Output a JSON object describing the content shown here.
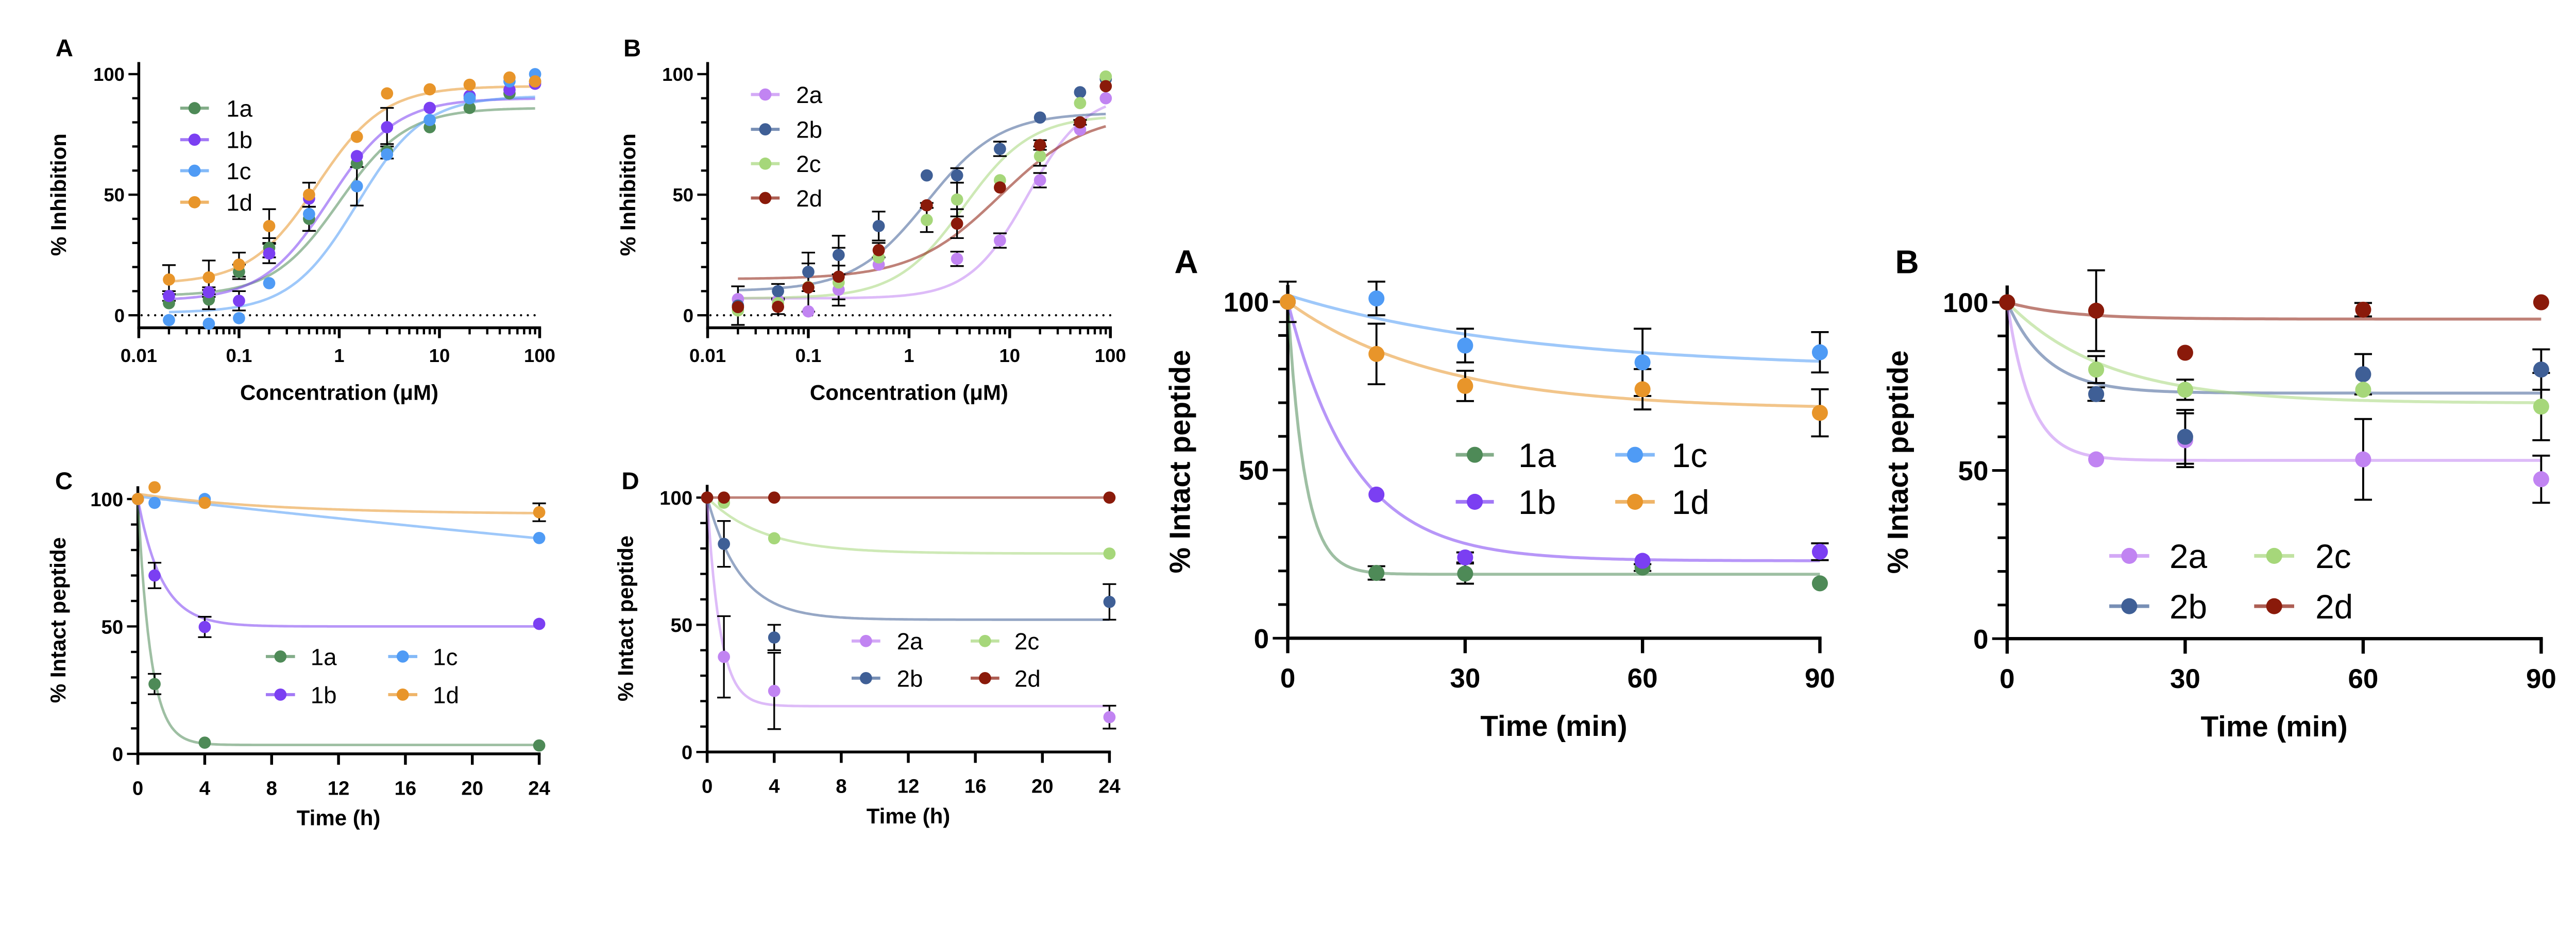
{
  "chart_data": [
    {
      "panel_label": "A",
      "type": "scatter",
      "xlabel": "Concentration (μM)",
      "ylabel": "% Inhibition",
      "xscale": "log",
      "xlim": [
        0.01,
        100
      ],
      "ylim": [
        -5,
        105
      ],
      "xticks": [
        "0.01",
        "0.1",
        "1",
        "10",
        "100"
      ],
      "yticks": [
        "0",
        "50",
        "100"
      ],
      "reference_line": {
        "y": 0,
        "style": "dotted"
      },
      "legend": "upper-left",
      "series": [
        {
          "name": "1a",
          "color": "#4e8a57",
          "x": [
            0.02,
            0.05,
            0.1,
            0.2,
            0.5,
            1.5,
            3,
            8,
            20,
            50,
            90
          ],
          "y": [
            5,
            6.5,
            18,
            28,
            40,
            63,
            68,
            78,
            86,
            92,
            97
          ],
          "err": [
            0,
            4,
            3,
            4,
            5,
            0,
            3,
            0,
            0,
            0,
            0
          ],
          "fit": {
            "model": "sigmoidal",
            "bottom": 8,
            "top": 86,
            "ec50": 1.0,
            "hill": 1.3
          }
        },
        {
          "name": "1b",
          "color": "#7b3ff2",
          "x": [
            0.02,
            0.05,
            0.1,
            0.2,
            0.5,
            1.5,
            3,
            8,
            20,
            50,
            90
          ],
          "y": [
            8,
            9.6,
            6,
            25.6,
            48.4,
            66,
            78,
            86,
            91,
            93.5,
            96
          ],
          "err": [
            2,
            2,
            4,
            4,
            0,
            0,
            8,
            0,
            0,
            0,
            0
          ],
          "fit": {
            "model": "sigmoidal",
            "bottom": 6,
            "top": 90,
            "ec50": 0.8,
            "hill": 1.3
          }
        },
        {
          "name": "1c",
          "color": "#4f9bf5",
          "x": [
            0.02,
            0.05,
            0.1,
            0.2,
            0.5,
            1.5,
            3,
            8,
            20,
            50,
            90
          ],
          "y": [
            -2,
            -3.5,
            -1.2,
            13.3,
            42,
            53.5,
            66.7,
            81,
            90,
            97,
            100
          ],
          "err": [
            0,
            0,
            0,
            0,
            0,
            8,
            0,
            0,
            0,
            0,
            0
          ],
          "fit": {
            "model": "sigmoidal",
            "bottom": 1,
            "top": 91,
            "ec50": 1.5,
            "hill": 1.3
          }
        },
        {
          "name": "1d",
          "color": "#e8952a",
          "x": [
            0.02,
            0.05,
            0.1,
            0.2,
            0.5,
            1.5,
            3,
            8,
            20,
            50,
            90
          ],
          "y": [
            14.8,
            15.7,
            21,
            37,
            50,
            74,
            92,
            93.7,
            95.6,
            98.6,
            97
          ],
          "err": [
            6,
            7,
            5,
            7,
            5,
            0,
            0,
            0,
            0,
            0,
            0
          ],
          "fit": {
            "model": "sigmoidal",
            "bottom": 13,
            "top": 95,
            "ec50": 0.6,
            "hill": 1.3
          }
        }
      ]
    },
    {
      "panel_label": "B",
      "type": "scatter",
      "xlabel": "Concentration (μM)",
      "ylabel": "% Inhibition",
      "xscale": "log",
      "xlim": [
        0.01,
        100
      ],
      "ylim": [
        -5,
        105
      ],
      "xticks": [
        "0.01",
        "0.1",
        "1",
        "10",
        "100"
      ],
      "yticks": [
        "0",
        "50",
        "100"
      ],
      "reference_line": {
        "y": 0,
        "style": "dotted"
      },
      "legend": "upper-left",
      "series": [
        {
          "name": "2a",
          "color": "#c184f2",
          "x": [
            0.02,
            0.05,
            0.1,
            0.2,
            0.5,
            3,
            8,
            20,
            50,
            90
          ],
          "y": [
            6.7,
            6.2,
            1.6,
            10.6,
            21,
            23.4,
            31,
            56,
            77,
            90
          ],
          "err": [
            0,
            0,
            0,
            0,
            0,
            3,
            3,
            3,
            0,
            0
          ],
          "fit": {
            "model": "sigmoidal",
            "bottom": 7,
            "top": 92,
            "ec50": 15,
            "hill": 1.5
          }
        },
        {
          "name": "2b",
          "color": "#3f5f96",
          "x": [
            0.02,
            0.05,
            0.1,
            0.2,
            0.5,
            1.5,
            3,
            8,
            20,
            50,
            90
          ],
          "y": [
            4,
            10,
            18,
            25,
            37,
            58,
            58,
            69,
            82,
            92.5,
            98
          ],
          "err": [
            8,
            3,
            8,
            8,
            6,
            0,
            3,
            3,
            0,
            0,
            0
          ],
          "fit": {
            "model": "sigmoidal",
            "bottom": 10,
            "top": 84,
            "ec50": 1.5,
            "hill": 1.2
          }
        },
        {
          "name": "2c",
          "color": "#a6d77a",
          "x": [
            0.02,
            0.05,
            0.1,
            0.2,
            0.5,
            1.5,
            3,
            8,
            20,
            50,
            90
          ],
          "y": [
            2,
            5,
            11.7,
            13.6,
            24,
            39.5,
            48,
            56,
            66,
            88,
            99
          ],
          "err": [
            0,
            0,
            0,
            7,
            0,
            5,
            7,
            0,
            4,
            0,
            0
          ],
          "fit": {
            "model": "sigmoidal",
            "bottom": 7,
            "top": 83,
            "ec50": 3.5,
            "hill": 1.3
          }
        },
        {
          "name": "2d",
          "color": "#8a1a0a",
          "x": [
            0.02,
            0.05,
            0.1,
            0.2,
            0.5,
            1.5,
            3,
            8,
            20,
            50,
            90
          ],
          "y": [
            3.4,
            3.5,
            11.5,
            16,
            27,
            45.6,
            38,
            53,
            70.6,
            80,
            95
          ],
          "err": [
            0,
            3,
            10,
            12,
            3,
            1,
            6,
            0,
            2,
            1,
            0
          ],
          "fit": {
            "model": "sigmoidal",
            "bottom": 15,
            "top": 84,
            "ec50": 8,
            "hill": 1.0
          }
        }
      ]
    },
    {
      "panel_label": "C",
      "type": "scatter",
      "xlabel": "Time (h)",
      "ylabel": "% Intact peptide",
      "xscale": "linear",
      "xlim": [
        0,
        24
      ],
      "ylim": [
        0,
        105
      ],
      "xticks": [
        "0",
        "4",
        "8",
        "12",
        "16",
        "20",
        "24"
      ],
      "yticks": [
        "0",
        "50",
        "100"
      ],
      "legend": "center-right, two columns",
      "series": [
        {
          "name": "1a",
          "color": "#4e8a57",
          "x": [
            0,
            1,
            4,
            24
          ],
          "y": [
            100,
            27.4,
            4.4,
            3.3
          ],
          "err": [
            0,
            4,
            0,
            0
          ],
          "fit": {
            "model": "one-phase decay",
            "y0": 100,
            "plateau": 3.5,
            "k": 1.3
          }
        },
        {
          "name": "1b",
          "color": "#7b3ff2",
          "x": [
            0,
            1,
            4,
            24
          ],
          "y": [
            100,
            70,
            49.8,
            51
          ],
          "err": [
            0,
            5,
            4,
            0
          ],
          "fit": {
            "model": "one-phase decay",
            "y0": 100,
            "plateau": 50,
            "k": 0.7
          }
        },
        {
          "name": "1c",
          "color": "#4f9bf5",
          "x": [
            0,
            1,
            4,
            24
          ],
          "y": [
            100,
            98.5,
            100,
            84.7
          ],
          "err": [
            0,
            0,
            0,
            0
          ],
          "fit": {
            "model": "one-phase decay",
            "y0": 101,
            "plateau": 0,
            "k": 0.0074
          }
        },
        {
          "name": "1d",
          "color": "#e8952a",
          "x": [
            0,
            1,
            4,
            24
          ],
          "y": [
            100,
            104.6,
            98.5,
            94.8
          ],
          "err": [
            0,
            0,
            0,
            3.5
          ],
          "fit": {
            "model": "one-phase decay",
            "y0": 102,
            "plateau": 94,
            "k": 0.12
          }
        }
      ]
    },
    {
      "panel_label": "D",
      "type": "scatter",
      "xlabel": "Time (h)",
      "ylabel": "% Intact peptide",
      "xscale": "linear",
      "xlim": [
        0,
        24
      ],
      "ylim": [
        0,
        105
      ],
      "xticks": [
        "0",
        "4",
        "8",
        "12",
        "16",
        "20",
        "24"
      ],
      "yticks": [
        "0",
        "50",
        "100"
      ],
      "legend": "center-right, two columns",
      "series": [
        {
          "name": "2a",
          "color": "#c184f2",
          "x": [
            0,
            1,
            4,
            24
          ],
          "y": [
            100,
            37.4,
            24,
            13.7
          ],
          "err": [
            0,
            16,
            15,
            4.5
          ],
          "fit": {
            "model": "one-phase decay",
            "y0": 100,
            "plateau": 18,
            "k": 1.3
          }
        },
        {
          "name": "2b",
          "color": "#3f5f96",
          "x": [
            0,
            1,
            4,
            24
          ],
          "y": [
            100,
            81.8,
            45,
            59
          ],
          "err": [
            0,
            9,
            5,
            7
          ],
          "fit": {
            "model": "one-phase decay",
            "y0": 100,
            "plateau": 52,
            "k": 0.5
          }
        },
        {
          "name": "2c",
          "color": "#a6d77a",
          "x": [
            0,
            1,
            4,
            24
          ],
          "y": [
            100,
            98,
            84,
            78
          ],
          "err": [
            0,
            0,
            0,
            0
          ],
          "fit": {
            "model": "one-phase decay",
            "y0": 100,
            "plateau": 78,
            "k": 0.3
          }
        },
        {
          "name": "2d",
          "color": "#8a1a0a",
          "x": [
            0,
            1,
            4,
            24
          ],
          "y": [
            100,
            100,
            100,
            100
          ],
          "err": [
            0,
            0,
            0,
            0
          ],
          "fit": {
            "model": "one-phase decay",
            "y0": 100,
            "plateau": 100,
            "k": 0.1
          }
        }
      ]
    },
    {
      "panel_label": "A",
      "type": "scatter",
      "xlabel": "Time (min)",
      "ylabel": "% Intact peptide",
      "xscale": "linear",
      "xlim": [
        0,
        90
      ],
      "ylim": [
        0,
        105
      ],
      "xticks": [
        "0",
        "30",
        "60",
        "90"
      ],
      "yticks": [
        "0",
        "50",
        "100"
      ],
      "legend": "center, two columns",
      "series": [
        {
          "name": "1a",
          "color": "#4e8a57",
          "x": [
            0,
            15,
            30,
            60,
            90
          ],
          "y": [
            100,
            19.4,
            19.2,
            21,
            16.3
          ],
          "err": [
            0,
            2,
            3,
            1,
            0
          ],
          "fit": {
            "model": "one-phase decay",
            "y0": 100,
            "plateau": 19,
            "k": 0.35
          }
        },
        {
          "name": "1b",
          "color": "#7b3ff2",
          "x": [
            0,
            15,
            30,
            60,
            90
          ],
          "y": [
            100,
            42.7,
            24,
            23,
            25.7
          ],
          "err": [
            0,
            0,
            1.5,
            0,
            2.5
          ],
          "fit": {
            "model": "one-phase decay",
            "y0": 100,
            "plateau": 23,
            "k": 0.09
          }
        },
        {
          "name": "1c",
          "color": "#4f9bf5",
          "x": [
            0,
            15,
            30,
            60,
            90
          ],
          "y": [
            100,
            101,
            87,
            82,
            85
          ],
          "err": [
            0,
            5,
            5,
            10,
            6
          ],
          "fit": {
            "model": "one-phase decay",
            "y0": 102,
            "plateau": 80,
            "k": 0.025
          }
        },
        {
          "name": "1d",
          "color": "#e8952a",
          "x": [
            0,
            15,
            30,
            60,
            90
          ],
          "y": [
            100,
            84.5,
            75,
            74,
            67
          ],
          "err": [
            6,
            9,
            4.5,
            6,
            7
          ],
          "fit": {
            "model": "one-phase decay",
            "y0": 100,
            "plateau": 68,
            "k": 0.04
          }
        }
      ]
    },
    {
      "panel_label": "B",
      "type": "scatter",
      "xlabel": "Time (min)",
      "ylabel": "% Intact peptide",
      "xscale": "linear",
      "xlim": [
        0,
        90
      ],
      "ylim": [
        0,
        105
      ],
      "xticks": [
        "0",
        "30",
        "60",
        "90"
      ],
      "yticks": [
        "0",
        "50",
        "100"
      ],
      "legend": "bottom-center, two columns",
      "series": [
        {
          "name": "2a",
          "color": "#c184f2",
          "x": [
            0,
            15,
            30,
            60,
            90
          ],
          "y": [
            100,
            53.3,
            59,
            53.3,
            47.4
          ],
          "err": [
            0,
            0,
            8,
            12,
            7
          ],
          "fit": {
            "model": "one-phase decay",
            "y0": 100,
            "plateau": 53,
            "k": 0.25
          }
        },
        {
          "name": "2b",
          "color": "#3f5f96",
          "x": [
            0,
            15,
            30,
            60,
            90
          ],
          "y": [
            100,
            72.7,
            60,
            78.6,
            80
          ],
          "err": [
            0,
            2,
            8,
            6,
            6
          ],
          "fit": {
            "model": "one-phase decay",
            "y0": 100,
            "plateau": 73,
            "k": 0.15
          }
        },
        {
          "name": "2c",
          "color": "#a6d77a",
          "x": [
            0,
            15,
            30,
            60,
            90
          ],
          "y": [
            100,
            80,
            74,
            74,
            69
          ],
          "err": [
            0,
            4,
            3,
            0,
            10
          ],
          "fit": {
            "model": "one-phase decay",
            "y0": 100,
            "plateau": 70,
            "k": 0.06
          }
        },
        {
          "name": "2d",
          "color": "#8a1a0a",
          "x": [
            0,
            15,
            30,
            60,
            90
          ],
          "y": [
            100,
            97.5,
            85,
            97.8,
            100
          ],
          "err": [
            0,
            12,
            0,
            2,
            0
          ],
          "fit": {
            "model": "one-phase decay",
            "y0": 100,
            "plateau": 95,
            "k": 0.1
          }
        }
      ]
    }
  ]
}
